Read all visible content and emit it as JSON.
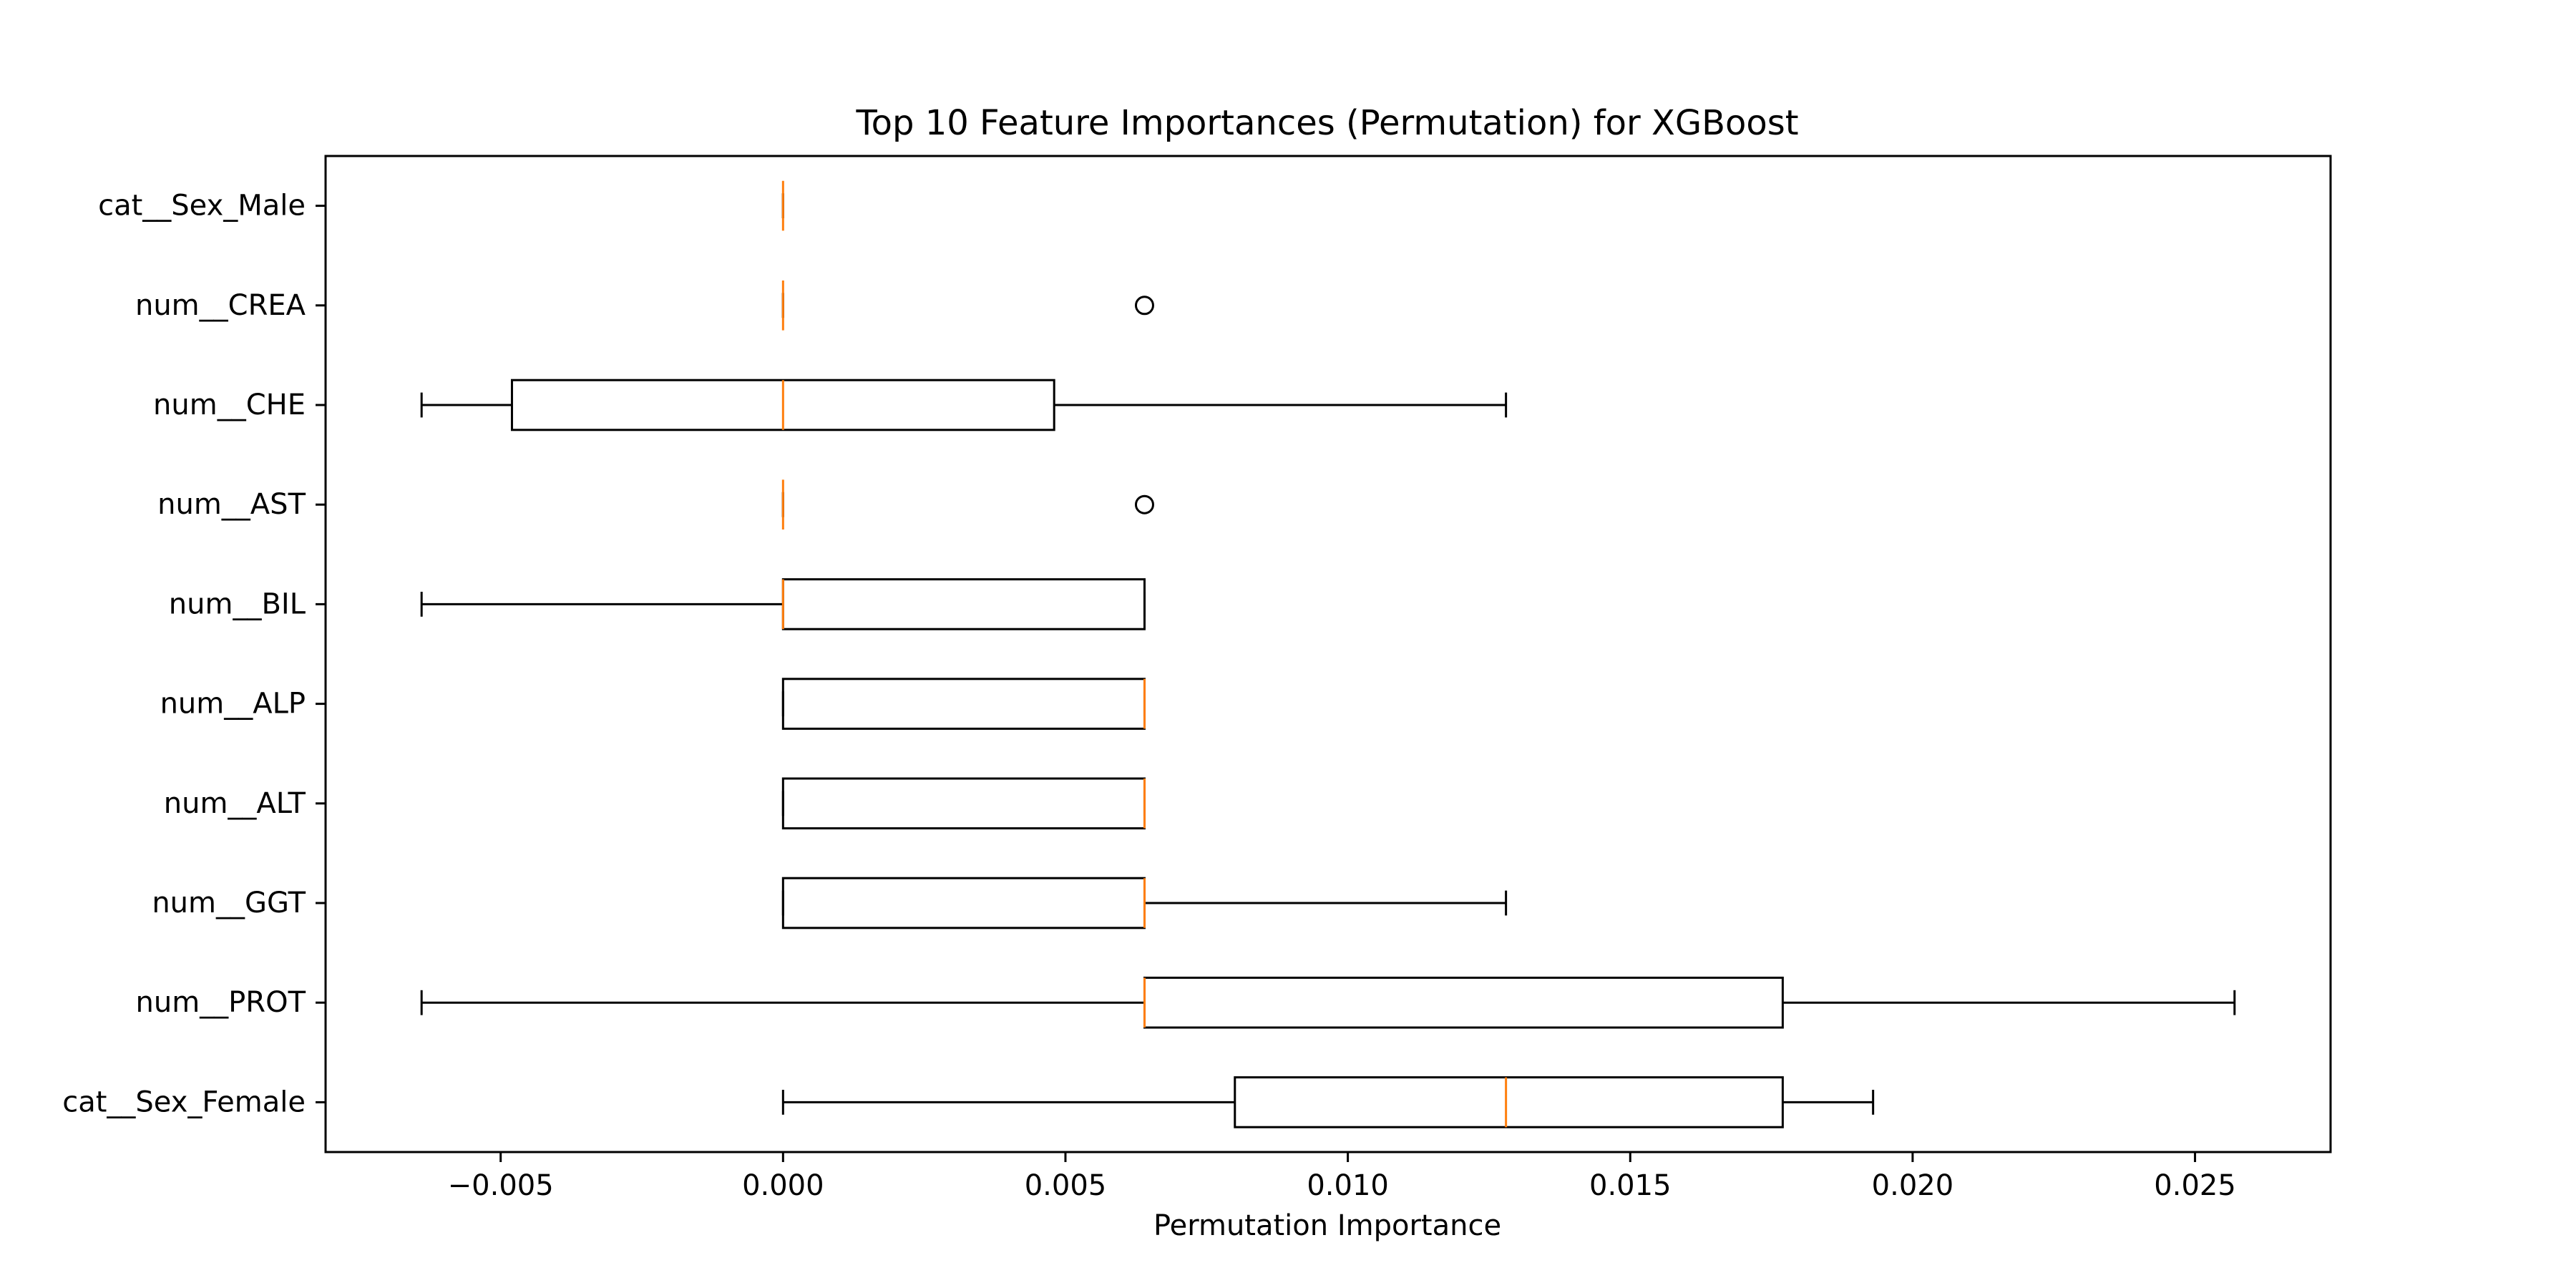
{
  "chart_data": {
    "type": "boxplot",
    "orientation": "horizontal",
    "title": "Top 10 Feature Importances (Permutation) for XGBoost",
    "xlabel": "Permutation Importance",
    "ylabel": "",
    "xlim": [
      -0.0081,
      0.0274
    ],
    "xticks": [
      -0.005,
      0.0,
      0.005,
      0.01,
      0.015,
      0.02,
      0.025
    ],
    "xtick_labels": [
      "−0.005",
      "0.000",
      "0.005",
      "0.010",
      "0.015",
      "0.020",
      "0.025"
    ],
    "grid": false,
    "colors": {
      "box": "#000000",
      "median": "#ff7f0e",
      "background": "#ffffff"
    },
    "categories": [
      "cat__Sex_Male",
      "num__CREA",
      "num__CHE",
      "num__AST",
      "num__BIL",
      "num__ALP",
      "num__ALT",
      "num__GGT",
      "num__PROT",
      "cat__Sex_Female"
    ],
    "boxes": [
      {
        "label": "cat__Sex_Male",
        "whislo": 0.0,
        "q1": 0.0,
        "med": 0.0,
        "q3": 0.0,
        "whishi": 0.0,
        "fliers": []
      },
      {
        "label": "num__CREA",
        "whislo": 0.0,
        "q1": 0.0,
        "med": 0.0,
        "q3": 0.0,
        "whishi": 0.0,
        "fliers": [
          0.0064
        ]
      },
      {
        "label": "num__CHE",
        "whislo": -0.0064,
        "q1": -0.0048,
        "med": 0.0,
        "q3": 0.0048,
        "whishi": 0.0128,
        "fliers": []
      },
      {
        "label": "num__AST",
        "whislo": 0.0,
        "q1": 0.0,
        "med": 0.0,
        "q3": 0.0,
        "whishi": 0.0,
        "fliers": [
          0.0064
        ]
      },
      {
        "label": "num__BIL",
        "whislo": -0.0064,
        "q1": 0.0,
        "med": 0.0,
        "q3": 0.0064,
        "whishi": 0.0064,
        "fliers": []
      },
      {
        "label": "num__ALP",
        "whislo": 0.0,
        "q1": 0.0,
        "med": 0.0064,
        "q3": 0.0064,
        "whishi": 0.0064,
        "fliers": []
      },
      {
        "label": "num__ALT",
        "whislo": 0.0,
        "q1": 0.0,
        "med": 0.0064,
        "q3": 0.0064,
        "whishi": 0.0064,
        "fliers": []
      },
      {
        "label": "num__GGT",
        "whislo": 0.0,
        "q1": 0.0,
        "med": 0.0064,
        "q3": 0.0064,
        "whishi": 0.0128,
        "fliers": []
      },
      {
        "label": "num__PROT",
        "whislo": -0.0064,
        "q1": 0.0064,
        "med": 0.0064,
        "q3": 0.0177,
        "whishi": 0.0257,
        "fliers": []
      },
      {
        "label": "cat__Sex_Female",
        "whislo": 0.0,
        "q1": 0.008,
        "med": 0.0128,
        "q3": 0.0177,
        "whishi": 0.0193,
        "fliers": []
      }
    ]
  }
}
